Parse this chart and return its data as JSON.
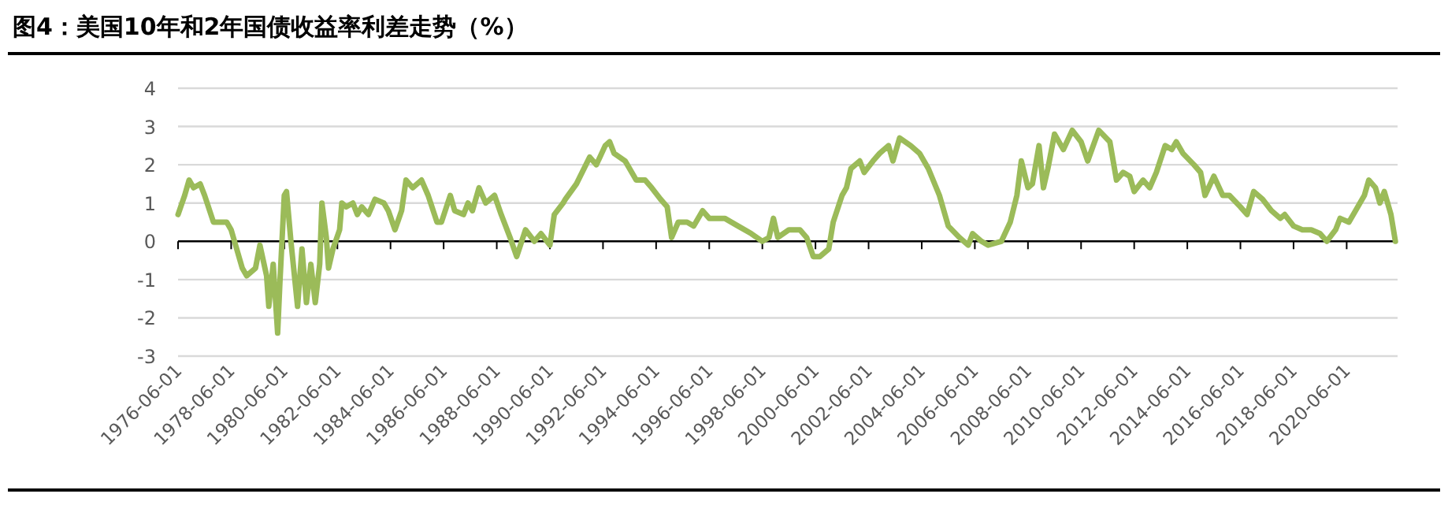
{
  "chart_data": {
    "type": "line",
    "title": "图4：美国10年和2年国债收益率利差走势（%）",
    "x": [
      "1976-06",
      "1976-09",
      "1976-11",
      "1977-01",
      "1977-04",
      "1977-06",
      "1977-10",
      "1977-12",
      "1978-04",
      "1978-06",
      "1978-08",
      "1978-11",
      "1979-01",
      "1979-05",
      "1979-07",
      "1979-10",
      "1979-11",
      "1980-01",
      "1980-03",
      "1980-04",
      "1980-06",
      "1980-07",
      "1980-09",
      "1980-12",
      "1981-02",
      "1981-04",
      "1981-06",
      "1981-08",
      "1981-10",
      "1981-11",
      "1982-01",
      "1982-02",
      "1982-04",
      "1982-07",
      "1982-08",
      "1982-10",
      "1983-01",
      "1983-03",
      "1983-05",
      "1983-08",
      "1983-11",
      "1984-03",
      "1984-05",
      "1984-08",
      "1984-11",
      "1985-01",
      "1985-04",
      "1985-08",
      "1985-11",
      "1986-03",
      "1986-05",
      "1986-09",
      "1986-11",
      "1987-03",
      "1987-05",
      "1987-07",
      "1987-10",
      "1988-01",
      "1988-05",
      "1988-08",
      "1988-12",
      "1989-03",
      "1989-07",
      "1989-11",
      "1990-02",
      "1990-06",
      "1990-08",
      "1990-12",
      "1991-01",
      "1991-06",
      "1991-12",
      "1992-03",
      "1992-07",
      "1992-09",
      "1992-11",
      "1993-04",
      "1993-09",
      "1994-01",
      "1994-04",
      "1994-08",
      "1994-11",
      "1995-01",
      "1995-04",
      "1995-08",
      "1995-11",
      "1996-03",
      "1996-06",
      "1997-01",
      "1997-07",
      "1998-01",
      "1998-06",
      "1998-09",
      "1998-11",
      "1999-01",
      "1999-06",
      "1999-11",
      "2000-02",
      "2000-05",
      "2000-08",
      "2000-12",
      "2001-02",
      "2001-06",
      "2001-08",
      "2001-10",
      "2002-02",
      "2002-04",
      "2002-08",
      "2002-11",
      "2003-03",
      "2003-05",
      "2003-08",
      "2004-01",
      "2004-05",
      "2004-09",
      "2005-02",
      "2005-06",
      "2005-11",
      "2006-03",
      "2006-05",
      "2006-09",
      "2006-12",
      "2007-06",
      "2007-10",
      "2008-01",
      "2008-03",
      "2008-06",
      "2008-08",
      "2008-11",
      "2009-01",
      "2009-03",
      "2009-06",
      "2009-10",
      "2010-02",
      "2010-06",
      "2010-09",
      "2011-02",
      "2011-07",
      "2011-10",
      "2012-01",
      "2012-04",
      "2012-06",
      "2012-10",
      "2013-01",
      "2013-04",
      "2013-08",
      "2013-11",
      "2014-01",
      "2014-04",
      "2014-09",
      "2014-12",
      "2015-02",
      "2015-06",
      "2015-10",
      "2016-01",
      "2016-06",
      "2016-09",
      "2016-12",
      "2017-04",
      "2017-08",
      "2017-12",
      "2018-02",
      "2018-06",
      "2018-10",
      "2019-02",
      "2019-06",
      "2019-09",
      "2020-01",
      "2020-03",
      "2020-07",
      "2020-10",
      "2021-02",
      "2021-04",
      "2021-07",
      "2021-09",
      "2021-11",
      "2022-02",
      "2022-04"
    ],
    "series": [
      {
        "color": "#9bbb59",
        "values": [
          0.7,
          1.2,
          1.6,
          1.4,
          1.5,
          1.2,
          0.5,
          0.5,
          0.5,
          0.3,
          -0.1,
          -0.7,
          -0.9,
          -0.7,
          -0.1,
          -0.9,
          -1.7,
          -0.6,
          -2.4,
          -1.1,
          1.2,
          1.3,
          0.0,
          -1.7,
          -0.2,
          -1.6,
          -0.6,
          -1.6,
          -0.6,
          1.0,
          0.1,
          -0.7,
          -0.2,
          0.3,
          1.0,
          0.9,
          1.0,
          0.7,
          0.9,
          0.7,
          1.1,
          1.0,
          0.8,
          0.3,
          0.8,
          1.6,
          1.4,
          1.6,
          1.2,
          0.5,
          0.5,
          1.2,
          0.8,
          0.7,
          1.0,
          0.8,
          1.4,
          1.0,
          1.2,
          0.7,
          0.1,
          -0.4,
          0.3,
          0.0,
          0.2,
          -0.1,
          0.7,
          1.0,
          1.1,
          1.5,
          2.2,
          2.0,
          2.5,
          2.6,
          2.3,
          2.1,
          1.6,
          1.6,
          1.4,
          1.1,
          0.9,
          0.1,
          0.5,
          0.5,
          0.4,
          0.8,
          0.6,
          0.6,
          0.4,
          0.2,
          0.0,
          0.1,
          0.6,
          0.1,
          0.3,
          0.3,
          0.1,
          -0.4,
          -0.4,
          -0.2,
          0.5,
          1.2,
          1.4,
          1.9,
          2.1,
          1.8,
          2.1,
          2.3,
          2.5,
          2.1,
          2.7,
          2.5,
          2.3,
          1.9,
          1.2,
          0.4,
          0.1,
          -0.1,
          0.2,
          0.0,
          -0.1,
          0.0,
          0.5,
          1.2,
          2.1,
          1.4,
          1.5,
          2.5,
          1.4,
          1.9,
          2.8,
          2.4,
          2.9,
          2.6,
          2.1,
          2.9,
          2.6,
          1.6,
          1.8,
          1.7,
          1.3,
          1.6,
          1.4,
          1.8,
          2.5,
          2.4,
          2.6,
          2.3,
          2.0,
          1.8,
          1.2,
          1.7,
          1.2,
          1.2,
          0.9,
          0.7,
          1.3,
          1.1,
          0.8,
          0.6,
          0.7,
          0.4,
          0.3,
          0.3,
          0.2,
          0.0,
          0.3,
          0.6,
          0.5,
          0.8,
          1.2,
          1.6,
          1.4,
          1.0,
          1.3,
          0.7,
          0.0
        ]
      }
    ],
    "xlim": [
      "1976-06",
      "2022-05"
    ],
    "xticks": [
      "1976-06-01",
      "1978-06-01",
      "1980-06-01",
      "1982-06-01",
      "1984-06-01",
      "1986-06-01",
      "1988-06-01",
      "1990-06-01",
      "1992-06-01",
      "1994-06-01",
      "1996-06-01",
      "1998-06-01",
      "2000-06-01",
      "2002-06-01",
      "2004-06-01",
      "2006-06-01",
      "2008-06-01",
      "2010-06-01",
      "2012-06-01",
      "2014-06-01",
      "2016-06-01",
      "2018-06-01",
      "2020-06-01"
    ],
    "ylim": [
      -3,
      4
    ],
    "yticks": [
      -3,
      -2,
      -1,
      0,
      1,
      2,
      3,
      4
    ],
    "grid": "y"
  }
}
